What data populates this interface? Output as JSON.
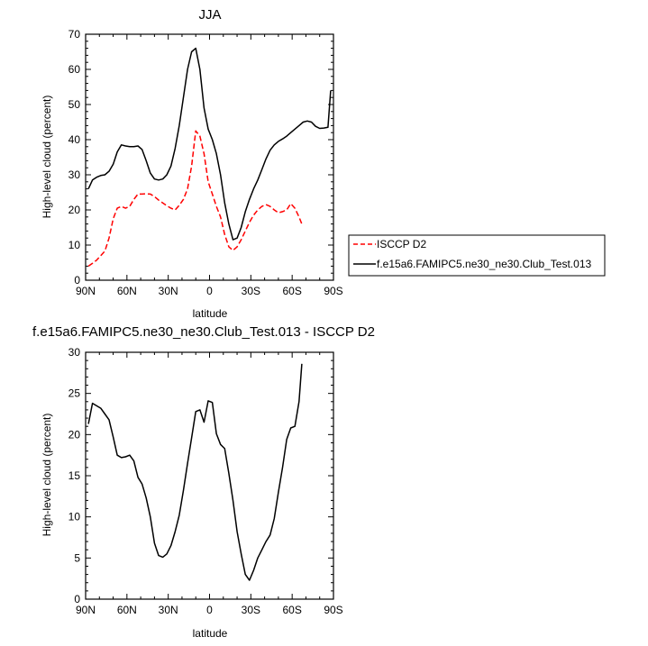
{
  "chart_data": [
    {
      "type": "line",
      "title": "JJA",
      "xlabel": "latitude",
      "ylabel": "High-level cloud (percent)",
      "xlim": [
        90,
        -90
      ],
      "ylim": [
        0,
        70
      ],
      "x_ticks": [
        90,
        60,
        30,
        0,
        -30,
        -60,
        -90
      ],
      "x_tick_labels": [
        "90N",
        "60N",
        "30N",
        "0",
        "30S",
        "60S",
        "90S"
      ],
      "y_ticks": [
        0,
        10,
        20,
        30,
        40,
        50,
        60,
        70
      ],
      "y_tick_labels": [
        "0",
        "10",
        "20",
        "30",
        "40",
        "50",
        "60",
        "70"
      ],
      "legend_position": "outside right",
      "series": [
        {
          "name": "ISCCP D2",
          "color": "#ff0000",
          "dash": true,
          "x": [
            88,
            85,
            82,
            79,
            76,
            73,
            70,
            67,
            64,
            61,
            58,
            55,
            52,
            49,
            46,
            43,
            40,
            37,
            34,
            31,
            28,
            25,
            22,
            19,
            16,
            13,
            10,
            7,
            4,
            1,
            -2,
            -5,
            -8,
            -11,
            -14,
            -17,
            -20,
            -23,
            -26,
            -29,
            -32,
            -35,
            -38,
            -41,
            -44,
            -47,
            -50,
            -53,
            -56,
            -59,
            -62,
            -65,
            -67
          ],
          "values": [
            4,
            4.8,
            5.7,
            7,
            8.3,
            12,
            17.5,
            20.5,
            21,
            20.5,
            21,
            23,
            24.5,
            24.5,
            24.6,
            24.5,
            23.8,
            22.8,
            22,
            21.2,
            20.5,
            20,
            21.3,
            23,
            26,
            32.5,
            42.5,
            41,
            36,
            28,
            24.5,
            21,
            18,
            13,
            9.5,
            8.5,
            9.5,
            11.5,
            14,
            16.5,
            18.5,
            20,
            21,
            21.5,
            21,
            20,
            19.2,
            19.5,
            20,
            21.8,
            20.5,
            18,
            16
          ]
        },
        {
          "name": "f.e15a6.FAMIPC5.ne30_ne30.Club_Test.013",
          "color": "#000000",
          "dash": false,
          "x": [
            88,
            85,
            82,
            79,
            76,
            73,
            70,
            67,
            64,
            61,
            58,
            55,
            52,
            49,
            46,
            43,
            40,
            37,
            34,
            31,
            28,
            25,
            22,
            19,
            16,
            13,
            10,
            7,
            4,
            1,
            -2,
            -5,
            -8,
            -11,
            -14,
            -17,
            -20,
            -23,
            -26,
            -29,
            -32,
            -35,
            -38,
            -41,
            -44,
            -47,
            -50,
            -53,
            -56,
            -59,
            -62,
            -65,
            -68,
            -71,
            -74,
            -77,
            -80,
            -83,
            -86,
            -88
          ],
          "values": [
            26,
            28.5,
            29.3,
            29.8,
            30,
            31,
            33,
            36.5,
            38.5,
            38.2,
            38,
            38,
            38.2,
            37.2,
            34,
            30.5,
            28.8,
            28.5,
            28.8,
            30,
            32.5,
            37.5,
            44,
            52,
            60,
            65,
            66,
            60,
            49,
            43,
            40,
            36,
            30,
            22,
            16,
            11.5,
            12,
            15,
            19.5,
            23,
            26,
            28.5,
            31.5,
            34.5,
            37,
            38.5,
            39.5,
            40.2,
            41,
            42,
            43,
            44,
            45,
            45.3,
            45,
            43.8,
            43.2,
            43.3,
            43.5,
            54
          ]
        }
      ]
    },
    {
      "type": "line",
      "title": "f.e15a6.FAMIPC5.ne30_ne30.Club_Test.013 - ISCCP D2",
      "xlabel": "latitude",
      "ylabel": "High-level cloud (percent)",
      "xlim": [
        90,
        -90
      ],
      "ylim": [
        0,
        30
      ],
      "x_ticks": [
        90,
        60,
        30,
        0,
        -30,
        -60,
        -90
      ],
      "x_tick_labels": [
        "90N",
        "60N",
        "30N",
        "0",
        "30S",
        "60S",
        "90S"
      ],
      "y_ticks": [
        0,
        5,
        10,
        15,
        20,
        25,
        30
      ],
      "y_tick_labels": [
        "0",
        "5",
        "10",
        "15",
        "20",
        "25",
        "30"
      ],
      "series": [
        {
          "color": "#000000",
          "x": [
            88,
            85,
            82,
            79,
            76,
            73,
            70,
            67,
            64,
            61,
            58,
            55,
            52,
            49,
            46,
            43,
            40,
            37,
            34,
            31,
            28,
            25,
            22,
            19,
            16,
            13,
            10,
            7,
            4,
            1,
            -2,
            -5,
            -8,
            -11,
            -14,
            -17,
            -20,
            -23,
            -26,
            -29,
            -32,
            -35,
            -38,
            -41,
            -44,
            -47,
            -50,
            -53,
            -56,
            -59,
            -62,
            -65,
            -67
          ],
          "values": [
            21.3,
            23.8,
            23.5,
            23.2,
            22.5,
            21.8,
            19.7,
            17.5,
            17.2,
            17.3,
            17.5,
            16.8,
            14.8,
            14,
            12.3,
            10,
            6.8,
            5.3,
            5.1,
            5.5,
            6.5,
            8.2,
            10.2,
            13.2,
            16.5,
            19.6,
            22.8,
            23,
            21.5,
            24.1,
            23.9,
            20.1,
            18.8,
            18.3,
            15.3,
            12,
            8.2,
            5.5,
            3,
            2.3,
            3.5,
            5,
            6,
            7,
            7.8,
            9.8,
            13,
            16,
            19.4,
            20.8,
            21,
            24,
            28.6
          ]
        }
      ]
    }
  ]
}
